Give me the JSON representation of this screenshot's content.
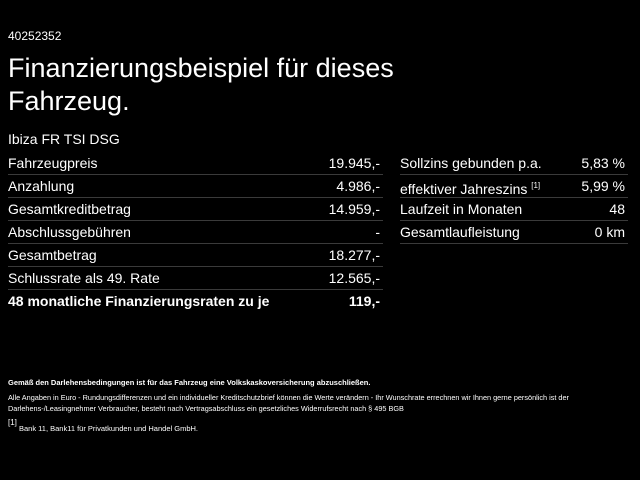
{
  "id_number": "40252352",
  "title": "Finanzierungsbeispiel für dieses Fahrzeug.",
  "model": "Ibiza FR TSI DSG",
  "left_table": {
    "rows": [
      [
        "Fahrzeugpreis",
        "19.945,-"
      ],
      [
        "Anzahlung",
        "4.986,-"
      ],
      [
        "Gesamtkreditbetrag",
        "14.959,-"
      ],
      [
        "Abschlussgebühren",
        "-"
      ],
      [
        "Gesamtbetrag",
        "18.277,-"
      ],
      [
        "Schlussrate als 49. Rate",
        "12.565,-"
      ],
      [
        "48 monatliche Finanzierungsraten zu je",
        "119,-"
      ]
    ]
  },
  "right_table": {
    "rows": [
      {
        "label": "Sollzins gebunden p.a.",
        "value": "5,83 %"
      },
      {
        "label": "effektiver Jahreszins",
        "sup": "[1]",
        "value": "5,99 %"
      },
      {
        "label": "Laufzeit in Monaten",
        "value": "48"
      },
      {
        "label": "Gesamtlaufleistung",
        "value": "0 km"
      }
    ]
  },
  "notes": {
    "insurance": "Gemäß den Darlehensbedingungen ist für das Fahrzeug eine Volkskaskoversicherung abzuschließen.",
    "disclaimer": "Alle Angaben in Euro - Rundungsdifferenzen und ein individueller Kreditschutzbrief können die Werte verändern - Ihr Wunschrate errechnen wir Ihnen gerne persönlich ist der Darlehens-/Leasingnehmer Verbraucher, besteht nach Vertragsabschluss ein gesetzliches Widerrufsrecht nach § 495 BGB",
    "footnote_mark": "[1]",
    "footnote": "Bank 11, Bank11 für Privatkunden und Handel GmbH."
  }
}
